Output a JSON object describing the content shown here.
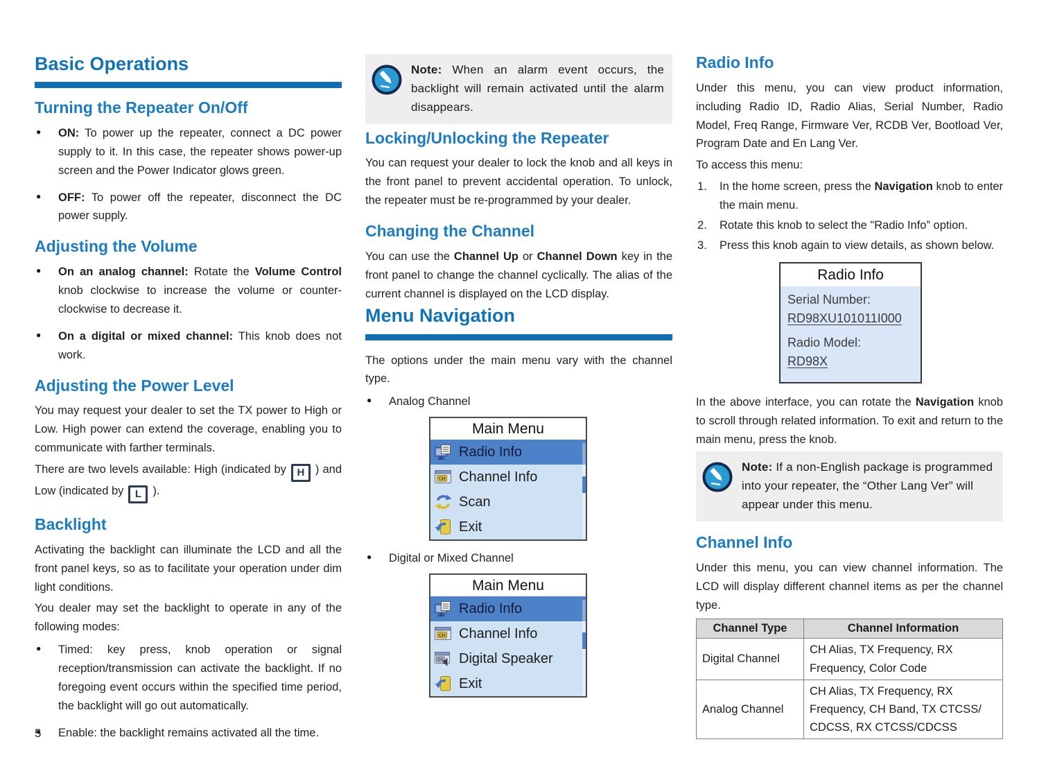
{
  "page": {
    "number": "5"
  },
  "colors": {
    "heading_blue": "#1173b5",
    "subheading_blue": "#1b7cc1",
    "rule_blue": "#0f6fb2",
    "note_bg": "#eeeeee",
    "note_icon_blue": "#2a9ad3",
    "menu_bg": "#cfe2f4",
    "menu_highlight": "#4e82c8",
    "screen_bg": "#d9e6f8",
    "table_header_bg": "#d9d9d9"
  },
  "left": {
    "h1": "Basic Operations",
    "s1": {
      "title": "Turning the Repeater On/Off",
      "bullets": [
        {
          "segs": [
            {
              "t": "ON:",
              "b": true
            },
            {
              "t": " To power up the repeater, connect a DC power supply to it. In this case, the repeater shows power-up screen and the Power Indicator glows green."
            }
          ]
        },
        {
          "segs": [
            {
              "t": "OFF:",
              "b": true
            },
            {
              "t": " To power off the repeater, disconnect the DC power supply."
            }
          ]
        }
      ]
    },
    "s2": {
      "title": "Adjusting the Volume",
      "bullets": [
        {
          "segs": [
            {
              "t": "On an analog channel:",
              "b": true
            },
            {
              "t": " Rotate the "
            },
            {
              "t": "Volume Control",
              "b": true
            },
            {
              "t": " knob clockwise to increase the volume or counter-clockwise to decrease it."
            }
          ]
        },
        {
          "segs": [
            {
              "t": "On a digital or mixed channel:",
              "b": true
            },
            {
              "t": " This knob does not work."
            }
          ]
        }
      ]
    },
    "s3": {
      "title": "Adjusting the Power Level",
      "p1": "You may request your dealer to set the TX power to High or Low. High power can extend the coverage, enabling you to communicate with farther terminals.",
      "p2a": "There are two levels available: High (indicated by",
      "high_letter": "H",
      "p2b": ") and Low (indicated by",
      "low_letter": "L",
      "p2c": ")."
    },
    "s4": {
      "title": "Backlight",
      "p1": "Activating the backlight can illuminate the LCD and all the front panel keys, so as to facilitate your operation under dim light conditions.",
      "p2": "You dealer may set the backlight to operate in any of the following modes:",
      "bullets": [
        "Timed: key press, knob operation or signal reception/transmission can activate the backlight. If no foregoing event occurs within the specified time period, the backlight will go out automatically.",
        "Enable: the backlight remains activated all the time."
      ]
    }
  },
  "middle": {
    "note1": {
      "label": "Note:",
      "text": " When an alarm event occurs, the backlight will remain activated until the alarm disappears."
    },
    "s1": {
      "title": "Locking/Unlocking the Repeater",
      "p": "You can request your dealer to lock the knob and all keys in the front panel to prevent accidental operation. To unlock, the repeater must be re-programmed by your dealer."
    },
    "s2": {
      "title": "Changing the Channel",
      "p_segs": [
        {
          "t": "You can use the "
        },
        {
          "t": "Channel Up",
          "b": true
        },
        {
          "t": " or "
        },
        {
          "t": "Channel Down",
          "b": true
        },
        {
          "t": " key in the front panel to change the channel cyclically. The alias of the current channel is displayed on the LCD display."
        }
      ]
    },
    "h1": "Menu Navigation",
    "p": "The options under the main menu vary with the channel type.",
    "bullet1": "Analog Channel",
    "menu1": {
      "title": "Main Menu",
      "items": [
        {
          "label": "Radio Info",
          "icon": "radio-info-icon",
          "selected": true
        },
        {
          "label": "Channel Info",
          "icon": "channel-info-icon",
          "selected": false
        },
        {
          "label": "Scan",
          "icon": "scan-icon",
          "selected": false
        },
        {
          "label": "Exit",
          "icon": "exit-icon",
          "selected": false
        }
      ]
    },
    "bullet2": "Digital or Mixed Channel",
    "menu2": {
      "title": "Main Menu",
      "items": [
        {
          "label": "Radio Info",
          "icon": "radio-info-icon",
          "selected": true
        },
        {
          "label": "Channel Info",
          "icon": "channel-info-icon",
          "selected": false
        },
        {
          "label": "Digital Speaker",
          "icon": "digital-speaker-icon",
          "selected": false
        },
        {
          "label": "Exit",
          "icon": "exit-icon",
          "selected": false
        }
      ]
    }
  },
  "right": {
    "s1": {
      "title": "Radio Info",
      "p": "Under this menu, you can view product information, including Radio ID, Radio Alias, Serial Number, Radio Model, Freq Range, Firmware Ver, RCDB Ver, Bootload Ver, Program Date and En Lang Ver.",
      "access": "To access this menu:",
      "steps": [
        {
          "segs": [
            {
              "t": "In the home screen, press the "
            },
            {
              "t": "Navigation",
              "b": true
            },
            {
              "t": " knob to enter the main menu."
            }
          ]
        },
        {
          "segs": [
            {
              "t": "Rotate this knob to select the \"Radio Info” option."
            }
          ]
        },
        {
          "segs": [
            {
              "t": "Press this knob again to view details, as shown below."
            }
          ]
        }
      ]
    },
    "screen": {
      "title": "Radio Info",
      "lines": [
        {
          "label": "Serial Number:",
          "value": "RD98XU101011I000"
        },
        {
          "label": "Radio Model:",
          "value": "RD98X"
        }
      ]
    },
    "p_after_segs": [
      {
        "t": "In the above interface, you can rotate the "
      },
      {
        "t": "Navigation",
        "b": true
      },
      {
        "t": " knob to scroll through related information. To exit and return to the main menu, press the knob."
      }
    ],
    "note2": {
      "label": "Note:",
      "text": " If a non-English package is programmed into your repeater, the  “Other Lang Ver”  will appear under this menu."
    },
    "s2": {
      "title": "Channel Info",
      "p": "Under this menu, you can view channel information. The LCD will display different channel items as per the channel type."
    },
    "table": {
      "headers": [
        "Channel Type",
        "Channel Information"
      ],
      "rows": [
        [
          "Digital Channel",
          "CH Alias, TX Frequency, RX Frequency, Color Code"
        ],
        [
          "Analog Channel",
          "CH Alias, TX Frequency, RX Frequency, CH Band, TX CTCSS/ CDCSS, RX CTCSS/CDCSS"
        ]
      ]
    }
  }
}
